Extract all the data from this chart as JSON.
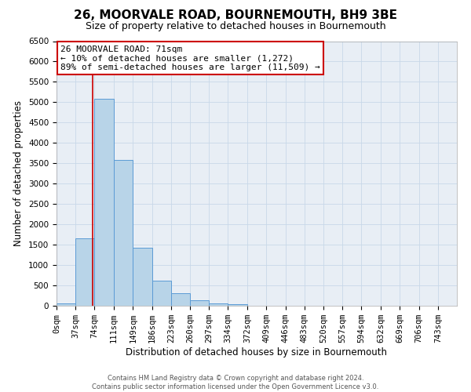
{
  "title": "26, MOORVALE ROAD, BOURNEMOUTH, BH9 3BE",
  "subtitle": "Size of property relative to detached houses in Bournemouth",
  "xlabel": "Distribution of detached houses by size in Bournemouth",
  "ylabel": "Number of detached properties",
  "bar_left_edges": [
    0,
    37,
    74,
    111,
    149,
    186,
    223,
    260,
    297,
    334,
    372,
    409,
    446,
    483,
    520,
    557,
    594,
    632,
    669,
    706
  ],
  "bar_heights": [
    60,
    1650,
    5080,
    3590,
    1430,
    610,
    300,
    140,
    60,
    30,
    0,
    0,
    0,
    0,
    0,
    0,
    0,
    0,
    0,
    0
  ],
  "bin_width": 37,
  "bar_color": "#b8d4e8",
  "bar_edge_color": "#5b9bd5",
  "property_line_x": 71,
  "property_line_color": "#cc0000",
  "annotation_line1": "26 MOORVALE ROAD: 71sqm",
  "annotation_line2": "← 10% of detached houses are smaller (1,272)",
  "annotation_line3": "89% of semi-detached houses are larger (11,509) →",
  "annotation_box_color": "#cc0000",
  "ylim": [
    0,
    6500
  ],
  "yticks": [
    0,
    500,
    1000,
    1500,
    2000,
    2500,
    3000,
    3500,
    4000,
    4500,
    5000,
    5500,
    6000,
    6500
  ],
  "xtick_labels": [
    "0sqm",
    "37sqm",
    "74sqm",
    "111sqm",
    "149sqm",
    "186sqm",
    "223sqm",
    "260sqm",
    "297sqm",
    "334sqm",
    "372sqm",
    "409sqm",
    "446sqm",
    "483sqm",
    "520sqm",
    "557sqm",
    "594sqm",
    "632sqm",
    "669sqm",
    "706sqm",
    "743sqm"
  ],
  "grid_color": "#c8d8e8",
  "background_color": "#e8eef5",
  "footer_line1": "Contains HM Land Registry data © Crown copyright and database right 2024.",
  "footer_line2": "Contains public sector information licensed under the Open Government Licence v3.0.",
  "title_fontsize": 11,
  "subtitle_fontsize": 9,
  "axis_label_fontsize": 8.5,
  "tick_fontsize": 7.5,
  "annotation_fontsize": 8,
  "footer_fontsize": 6
}
